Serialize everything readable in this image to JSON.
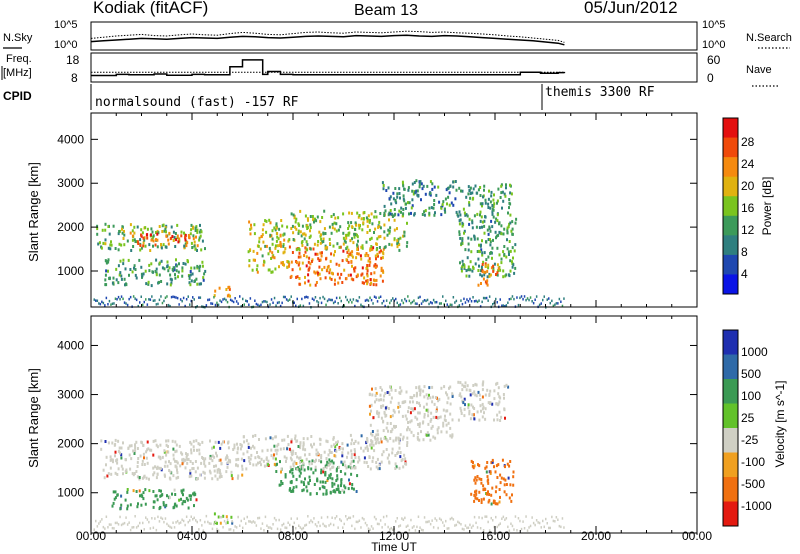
{
  "header": {
    "station": "Kodiak (fitACF)",
    "beam": "Beam 13",
    "date": "05/Jun/2012"
  },
  "chart_data": [
    {
      "type": "line",
      "panel": "noise",
      "ylabel_left": "N.Sky",
      "ylabel_right": "N.Search",
      "yticks_left": [
        "10^5",
        "10^0"
      ],
      "yticks_right": [
        "10^5",
        "10^0"
      ],
      "ylim_log10": [
        0,
        5
      ],
      "x_hours": [
        0,
        0.5,
        1,
        1.5,
        2,
        2.5,
        3,
        3.5,
        4,
        4.5,
        5,
        5.5,
        6,
        6.5,
        7,
        7.5,
        8,
        8.5,
        9,
        9.5,
        10,
        10.5,
        11,
        11.5,
        12,
        12.5,
        13,
        13.5,
        14,
        14.5,
        15,
        15.5,
        16,
        16.5,
        17,
        17.5,
        18,
        18.5,
        18.75
      ],
      "series": [
        {
          "name": "N.Sky",
          "values_log10": [
            1.6,
            1.8,
            2.0,
            2.2,
            2.4,
            2.3,
            2.2,
            2.4,
            2.6,
            2.5,
            2.4,
            2.7,
            2.9,
            2.8,
            2.6,
            2.5,
            2.7,
            2.9,
            3.0,
            2.9,
            2.8,
            3.1,
            3.0,
            2.9,
            3.1,
            3.2,
            3.0,
            2.9,
            3.1,
            3.0,
            2.8,
            2.6,
            2.4,
            2.2,
            2.0,
            1.8,
            1.5,
            1.2,
            0.8
          ]
        },
        {
          "name": "N.Search",
          "values_log10": [
            2.4,
            2.7,
            3.0,
            3.2,
            3.4,
            3.1,
            3.0,
            3.3,
            3.5,
            3.3,
            3.2,
            3.6,
            3.9,
            3.7,
            3.4,
            3.3,
            3.6,
            3.9,
            4.0,
            3.8,
            3.7,
            4.0,
            3.9,
            3.8,
            4.0,
            4.2,
            4.1,
            3.9,
            4.0,
            3.8,
            3.7,
            3.5,
            3.3,
            3.0,
            2.8,
            2.5,
            2.2,
            1.9,
            1.4
          ]
        }
      ]
    },
    {
      "type": "line",
      "panel": "frequency",
      "ylabel_left": "Freq. [MHz]",
      "ylabel_right": "Nave",
      "yticks_left": [
        "18",
        "8"
      ],
      "yticks_right": [
        "60",
        "0"
      ],
      "ylim": [
        8,
        18
      ],
      "series": [
        {
          "name": "Freq.",
          "x_hours": [
            0,
            1,
            1.5,
            2.5,
            3,
            4,
            4.5,
            5.5,
            6,
            6.8,
            7,
            7.5,
            8,
            16.5,
            17,
            17.8,
            18.5,
            18.75
          ],
          "values": [
            10.5,
            11,
            10.8,
            11.2,
            10.6,
            11,
            10.8,
            14.5,
            17.6,
            11,
            12.3,
            11,
            10.8,
            10.8,
            12,
            11.5,
            11.8,
            11.6
          ]
        },
        {
          "name": "Nave",
          "x_hours": [
            0,
            18.75
          ],
          "values": [
            12,
            12
          ]
        }
      ]
    },
    {
      "type": "table",
      "panel": "cpid",
      "label": "CPID",
      "segments": [
        {
          "start_hour": 0,
          "end_hour": 18,
          "text": "normalsound (fast) -157 RF"
        },
        {
          "start_hour": 18,
          "end_hour": 24,
          "text": "themis 3300 RF"
        }
      ]
    },
    {
      "type": "heatmap",
      "panel": "power",
      "ylabel": "Slant Range [km]",
      "yticks": [
        1000,
        2000,
        3000,
        4000
      ],
      "ylim": [
        180,
        4600
      ],
      "xlim_hours": [
        0,
        24
      ],
      "data_end_hour": 18.75,
      "colorbar": {
        "label": "Power [dB]",
        "ticks": [
          "28",
          "24",
          "20",
          "16",
          "12",
          "8",
          "4"
        ],
        "range": [
          0,
          32
        ],
        "colors": [
          "#0a14e6",
          "#1f48b0",
          "#2f7f7f",
          "#3c9a5a",
          "#7ac41f",
          "#e0b210",
          "#f58a0f",
          "#f04a0a",
          "#e40f0f"
        ]
      },
      "scatter_regions": [
        {
          "start_hour": 0.2,
          "end_hour": 4.5,
          "range_km": [
            1500,
            2100
          ],
          "level": 14
        },
        {
          "start_hour": 1.5,
          "end_hour": 4.2,
          "range_km": [
            1600,
            1900
          ],
          "level": 26
        },
        {
          "start_hour": 0.5,
          "end_hour": 4.5,
          "range_km": [
            700,
            1300
          ],
          "level": 12
        },
        {
          "start_hour": 4.8,
          "end_hour": 5.5,
          "range_km": [
            450,
            700
          ],
          "level": 22
        },
        {
          "start_hour": 6.2,
          "end_hour": 7.8,
          "range_km": [
            1000,
            2200
          ],
          "level": 18
        },
        {
          "start_hour": 7.8,
          "end_hour": 11.6,
          "range_km": [
            700,
            1600
          ],
          "level": 24
        },
        {
          "start_hour": 7.8,
          "end_hour": 12.5,
          "range_km": [
            1500,
            2400
          ],
          "level": 16
        },
        {
          "start_hour": 11.5,
          "end_hour": 14.5,
          "range_km": [
            2300,
            3100
          ],
          "level": 10
        },
        {
          "start_hour": 14.5,
          "end_hour": 16.8,
          "range_km": [
            900,
            3000
          ],
          "level": 12
        },
        {
          "start_hour": 15.3,
          "end_hour": 16.2,
          "range_km": [
            700,
            1200
          ],
          "level": 24
        }
      ]
    },
    {
      "type": "heatmap",
      "panel": "velocity",
      "ylabel": "Slant Range [km]",
      "xlabel": "Time UT",
      "xticks": [
        "00:00",
        "04:00",
        "08:00",
        "12:00",
        "16:00",
        "20:00",
        "00:00"
      ],
      "yticks": [
        1000,
        2000,
        3000,
        4000
      ],
      "ylim": [
        180,
        4600
      ],
      "xlim_hours": [
        0,
        24
      ],
      "data_end_hour": 18.75,
      "colorbar": {
        "label": "Velocity [m s^-1]",
        "ticks": [
          "1000",
          "500",
          "100",
          "25",
          "-25",
          "-100",
          "-500",
          "-1000"
        ],
        "colors": [
          "#1f2fb0",
          "#2f6aa8",
          "#3b9a54",
          "#62c22a",
          "#cfcfc4",
          "#f0a020",
          "#f07010",
          "#e41a10"
        ]
      },
      "scatter_regions": [
        {
          "start_hour": 0.2,
          "end_hour": 6.0,
          "range_km": [
            1300,
            2100
          ],
          "class": "-25..25"
        },
        {
          "start_hour": 0.8,
          "end_hour": 4.2,
          "range_km": [
            700,
            1100
          ],
          "class": "100..500"
        },
        {
          "start_hour": 4.8,
          "end_hour": 5.6,
          "range_km": [
            380,
            600
          ],
          "class": "25..100"
        },
        {
          "start_hour": 7.2,
          "end_hour": 10.5,
          "range_km": [
            1000,
            1700
          ],
          "class": "100..500"
        },
        {
          "start_hour": 6.0,
          "end_hour": 12.5,
          "range_km": [
            1500,
            2200
          ],
          "class": "-25..25"
        },
        {
          "start_hour": 11.0,
          "end_hour": 14.3,
          "range_km": [
            2100,
            3200
          ],
          "class": "-25..25"
        },
        {
          "start_hour": 15.0,
          "end_hour": 16.7,
          "range_km": [
            800,
            1700
          ],
          "class": "-100..-500"
        },
        {
          "start_hour": 14.5,
          "end_hour": 16.5,
          "range_km": [
            2500,
            3300
          ],
          "class": "-25..25"
        }
      ]
    }
  ]
}
